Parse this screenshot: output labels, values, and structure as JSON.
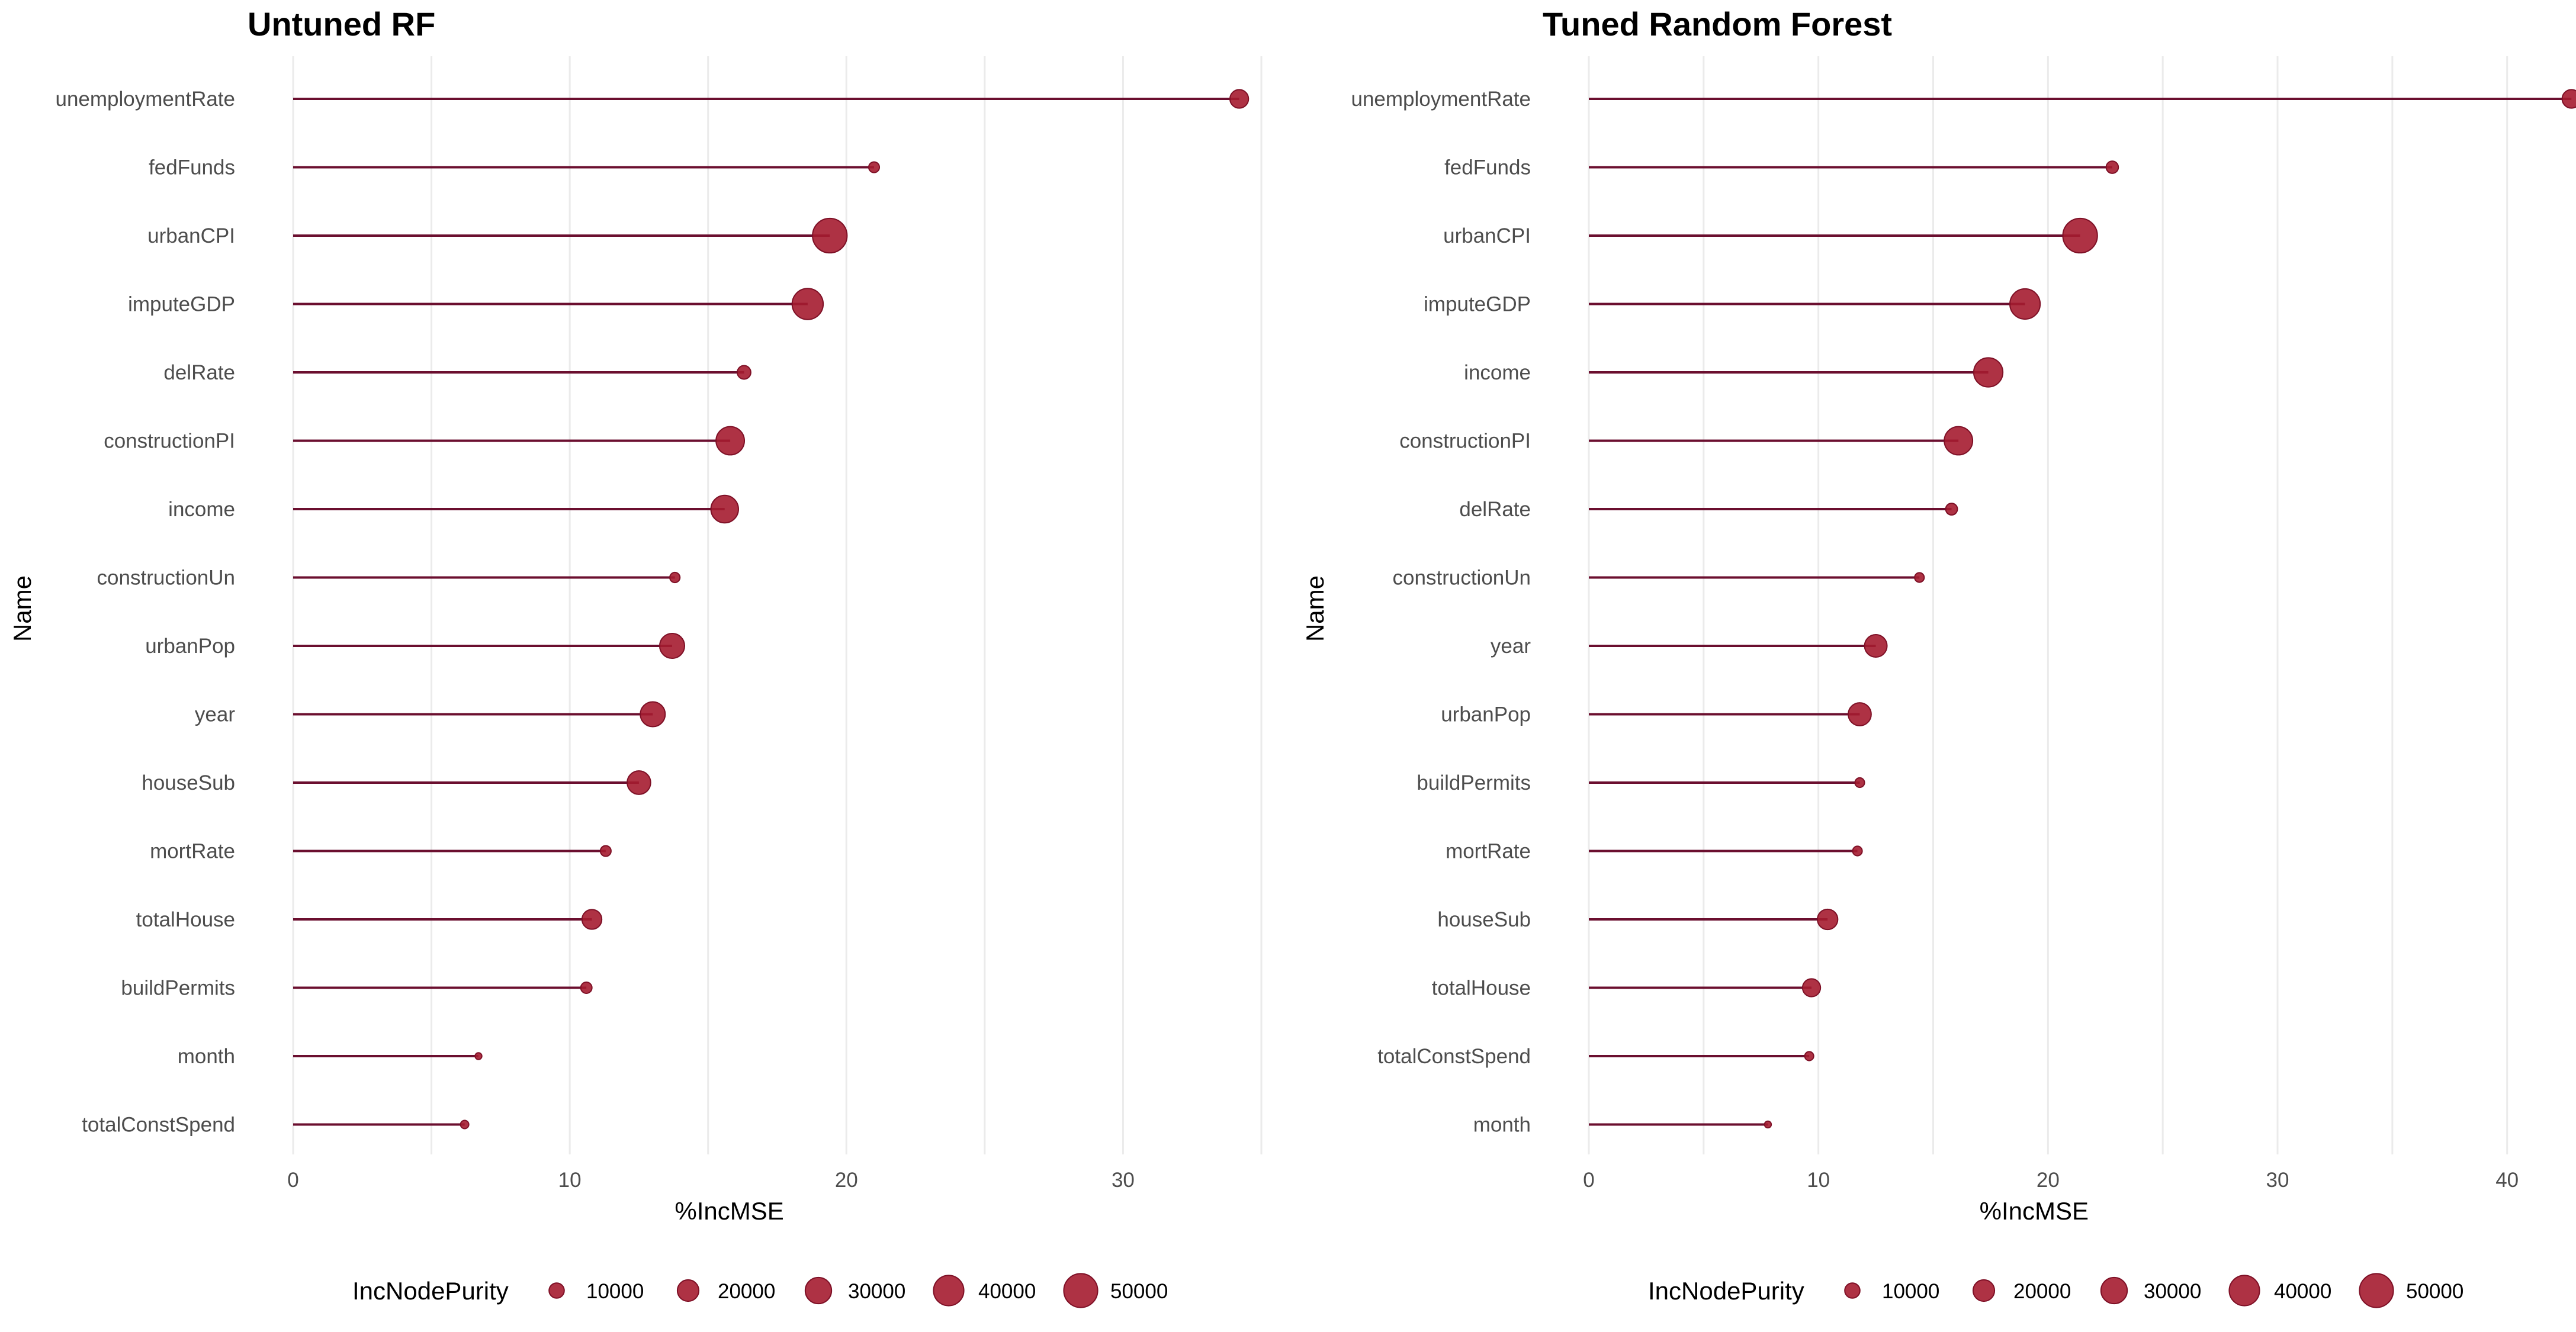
{
  "colors": {
    "point_fill": "#a51c30",
    "point_alpha": 0.9,
    "segment": "#6b0f2f",
    "grid": "#ebebeb"
  },
  "chart_data": [
    {
      "type": "lollipop",
      "title": "Untuned RF",
      "xlabel": "%IncMSE",
      "ylabel": "Name",
      "xlim": [
        0,
        35
      ],
      "xticks": [
        0,
        10,
        20,
        30
      ],
      "grid": true,
      "legend": {
        "title": "IncNodePurity",
        "position": "bottom",
        "breaks": [
          10000,
          20000,
          30000,
          40000,
          50000
        ]
      },
      "points": [
        {
          "name": "unemploymentRate",
          "x": 34.2,
          "size": 15000
        },
        {
          "name": "fedFunds",
          "x": 21.0,
          "size": 5000
        },
        {
          "name": "urbanCPI",
          "x": 19.4,
          "size": 52000
        },
        {
          "name": "imputeGDP",
          "x": 18.6,
          "size": 42000
        },
        {
          "name": "delRate",
          "x": 16.3,
          "size": 8000
        },
        {
          "name": "constructionPI",
          "x": 15.8,
          "size": 35000
        },
        {
          "name": "income",
          "x": 15.6,
          "size": 33000
        },
        {
          "name": "constructionUn",
          "x": 13.8,
          "size": 4500
        },
        {
          "name": "urbanPop",
          "x": 13.7,
          "size": 27000
        },
        {
          "name": "year",
          "x": 13.0,
          "size": 27000
        },
        {
          "name": "houseSub",
          "x": 12.5,
          "size": 24000
        },
        {
          "name": "mortRate",
          "x": 11.3,
          "size": 5000
        },
        {
          "name": "totalHouse",
          "x": 10.8,
          "size": 17000
        },
        {
          "name": "buildPermits",
          "x": 10.6,
          "size": 5500
        },
        {
          "name": "month",
          "x": 6.7,
          "size": 2000
        },
        {
          "name": "totalConstSpend",
          "x": 6.2,
          "size": 3000
        }
      ]
    },
    {
      "type": "lollipop",
      "title": "Tuned Random Forest",
      "xlabel": "%IncMSE",
      "ylabel": "Name",
      "xlim": [
        0,
        43
      ],
      "xticks": [
        0,
        10,
        20,
        30,
        40
      ],
      "grid": true,
      "legend": {
        "title": "IncNodePurity",
        "position": "bottom",
        "breaks": [
          10000,
          20000,
          30000,
          40000,
          50000
        ]
      },
      "points": [
        {
          "name": "unemploymentRate",
          "x": 42.8,
          "size": 15000
        },
        {
          "name": "fedFunds",
          "x": 22.8,
          "size": 6500
        },
        {
          "name": "urbanCPI",
          "x": 21.4,
          "size": 52000
        },
        {
          "name": "imputeGDP",
          "x": 19.0,
          "size": 40000
        },
        {
          "name": "income",
          "x": 17.4,
          "size": 37000
        },
        {
          "name": "constructionPI",
          "x": 16.1,
          "size": 35000
        },
        {
          "name": "delRate",
          "x": 15.8,
          "size": 6000
        },
        {
          "name": "constructionUn",
          "x": 14.4,
          "size": 4000
        },
        {
          "name": "year",
          "x": 12.5,
          "size": 22000
        },
        {
          "name": "urbanPop",
          "x": 11.8,
          "size": 23000
        },
        {
          "name": "buildPermits",
          "x": 11.8,
          "size": 4000
        },
        {
          "name": "mortRate",
          "x": 11.7,
          "size": 4000
        },
        {
          "name": "houseSub",
          "x": 10.4,
          "size": 18000
        },
        {
          "name": "totalHouse",
          "x": 9.7,
          "size": 14000
        },
        {
          "name": "totalConstSpend",
          "x": 9.6,
          "size": 3500
        },
        {
          "name": "month",
          "x": 7.8,
          "size": 2000
        }
      ]
    }
  ]
}
